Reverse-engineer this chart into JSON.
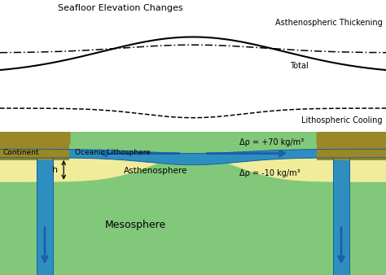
{
  "title_top": "Seafloor Elevation Changes",
  "label_asthenospheric": "Asthenospheric Thickening",
  "label_total": "Total",
  "label_lithospheric": "Lithospheric Cooling",
  "label_continent": "Continent",
  "label_oceanic": "Oceanic Lithosphere",
  "label_asthenosphere": "Asthenosphere",
  "label_mesosphere": "Mesosphere",
  "label_delta_rho_pos": "Δρ = +70 kg/m³",
  "label_delta_rho_neg": "Δρ = -10 kg/m³",
  "label_h": "h",
  "bg_color": "#ffffff",
  "mesosphere_color": "#82c87a",
  "asthenosphere_color": "#f0ec9a",
  "lithosphere_color": "#2e8ec0",
  "continent_color": "#9a8828",
  "arrow_color": "#1a5fa8"
}
